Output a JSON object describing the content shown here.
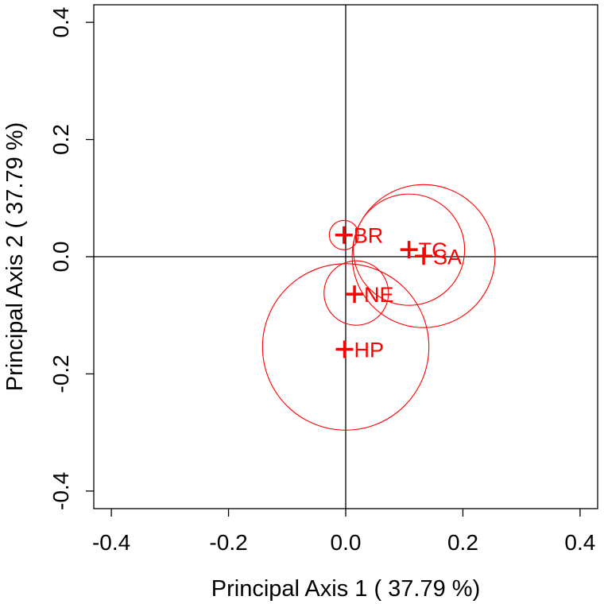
{
  "chart_data": {
    "type": "scatter",
    "xlabel": "Principal Axis 1 ( 37.79 %)",
    "ylabel": "Principal Axis 2 ( 37.79 %)",
    "xlim": [
      -0.43,
      0.43
    ],
    "ylim": [
      -0.43,
      0.43
    ],
    "xticks": [
      "-0.4",
      "-0.2",
      "0.0",
      "0.2",
      "0.4"
    ],
    "yticks": [
      "-0.4",
      "-0.2",
      "0.0",
      "0.2",
      "0.4"
    ],
    "reference_lines": {
      "x": 0,
      "y": 0
    },
    "grid": false,
    "colors": {
      "points": "#ff0000",
      "axes": "#000000"
    },
    "points": [
      {
        "label": "BR",
        "x": -0.003,
        "y": 0.037,
        "circle_center": [
          -0.003,
          0.037
        ],
        "circle_radius": 0.025
      },
      {
        "label": "TC",
        "x": 0.108,
        "y": 0.012,
        "circle_center": [
          0.108,
          0.012
        ],
        "circle_radius": 0.095
      },
      {
        "label": "SA",
        "x": 0.133,
        "y": 0.001,
        "circle_center": [
          0.133,
          0.001
        ],
        "circle_radius": 0.122
      },
      {
        "label": "NE",
        "x": 0.015,
        "y": -0.064,
        "circle_center": [
          0.018,
          -0.062
        ],
        "circle_radius": 0.055
      },
      {
        "label": "HP",
        "x": -0.002,
        "y": -0.158,
        "circle_center": [
          0.0,
          -0.154
        ],
        "circle_radius": 0.142
      }
    ]
  }
}
